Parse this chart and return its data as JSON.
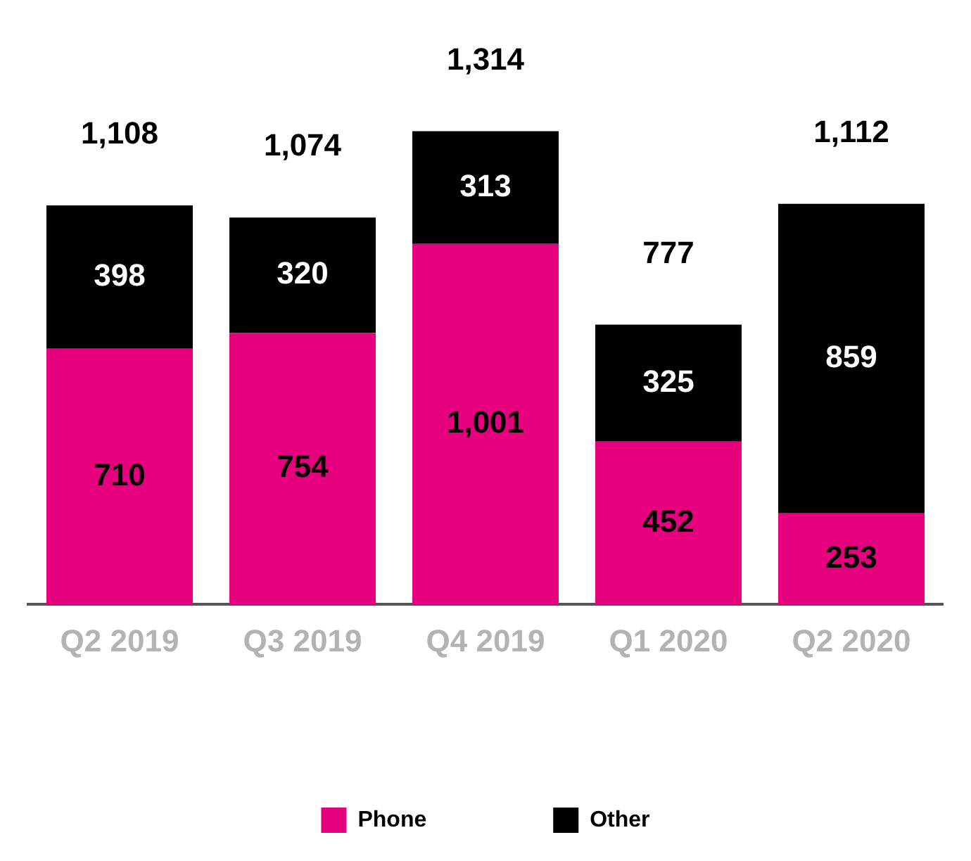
{
  "chart_data": {
    "type": "bar",
    "stacked": true,
    "categories": [
      "Q2 2019",
      "Q3 2019",
      "Q4 2019",
      "Q1 2020",
      "Q2 2020"
    ],
    "series": [
      {
        "name": "Phone",
        "color": "#e6007e",
        "values": [
          710,
          754,
          1001,
          452,
          253
        ],
        "value_labels": [
          "710",
          "754",
          "1,001",
          "452",
          "253"
        ]
      },
      {
        "name": "Other",
        "color": "#000000",
        "values": [
          398,
          320,
          313,
          325,
          859
        ],
        "value_labels": [
          "398",
          "320",
          "313",
          "325",
          "859"
        ]
      }
    ],
    "totals": [
      "1,108",
      "1,074",
      "1,314",
      "777",
      "1,112"
    ],
    "legend": "bottom",
    "grid": false
  }
}
